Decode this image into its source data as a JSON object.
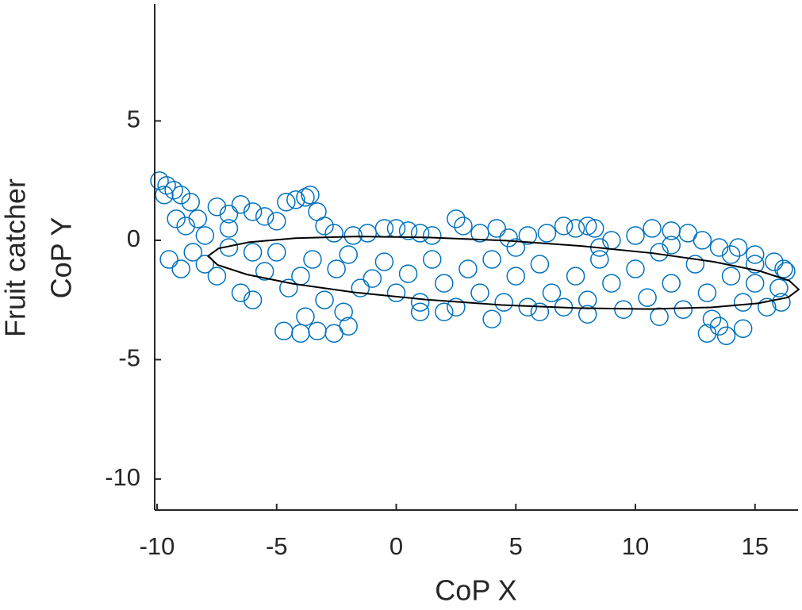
{
  "chart_data": {
    "type": "scatter",
    "xlabel": "CoP X",
    "ylabel": [
      "Fruit catcher",
      "CoP Y"
    ],
    "color": "#0072bd",
    "xlim": [
      -10.1,
      16.8
    ],
    "xticks": [
      -10,
      -5,
      0,
      5,
      10,
      15
    ],
    "ylim": [
      -11.3,
      9.9
    ],
    "yticks": [
      -10,
      -5,
      0,
      5
    ],
    "x": [
      -9.9,
      -9.6,
      -9.3,
      -9.7,
      -9,
      -8.6,
      -9.2,
      -8.8,
      -8.3,
      -7.5,
      -7,
      -6.5,
      -6,
      -5.5,
      -5,
      -4.6,
      -4.2,
      -3.8,
      -3.6,
      -3.3,
      -3,
      -2.6,
      -1.8,
      -1.2,
      -0.5,
      0,
      0.5,
      1,
      1.5,
      2.5,
      2.8,
      3.5,
      4.2,
      4.7,
      5.5,
      6.3,
      7,
      7.5,
      8,
      8.3,
      9,
      10,
      10.7,
      11.5,
      12.2,
      12.8,
      13.5,
      14.3,
      15,
      15.8,
      16.2,
      -9.5,
      -9,
      -8.5,
      -8,
      -7.5,
      -7,
      -6.5,
      -6,
      -5.5,
      -5,
      -4.5,
      -4,
      -3.5,
      -3,
      -2.5,
      -2,
      -1.5,
      -1,
      -0.5,
      0,
      0.5,
      1,
      1.5,
      2,
      2.5,
      3,
      3.5,
      4,
      4.5,
      5,
      5.5,
      6,
      6.5,
      7,
      7.5,
      8,
      8.5,
      9,
      9.5,
      10,
      10.5,
      11,
      11.5,
      12,
      12.5,
      13,
      13.5,
      14,
      14.5,
      15,
      15.5,
      16,
      16.3,
      16.1,
      -4.7,
      -4,
      -3.3,
      -2.6,
      -2,
      -2.2,
      -3.8,
      13,
      13.8,
      14.5,
      13.2,
      1,
      2,
      4,
      6,
      8,
      11,
      5,
      8.5,
      11.5,
      14,
      15,
      -6,
      -8,
      -7
    ],
    "y": [
      2.5,
      2.3,
      2.1,
      1.9,
      1.9,
      1.6,
      0.9,
      0.6,
      0.9,
      1.4,
      1.1,
      1.5,
      1.2,
      1,
      0.8,
      1.6,
      1.7,
      1.8,
      1.9,
      1.2,
      0.6,
      0.3,
      0.2,
      0.3,
      0.5,
      0.5,
      0.4,
      0.3,
      0.2,
      0.9,
      0.6,
      0.3,
      0.5,
      0.1,
      0.2,
      0.3,
      0.6,
      0.5,
      0.6,
      0.5,
      0,
      0.2,
      0.5,
      0.4,
      0.3,
      0,
      -0.3,
      -0.3,
      -0.6,
      -0.9,
      -1.2,
      -0.8,
      -1.2,
      -0.5,
      -1,
      -1.5,
      -0.3,
      -2.2,
      -2.5,
      -1.3,
      -0.5,
      -2,
      -1.5,
      -0.8,
      -2.5,
      -1.2,
      -0.6,
      -2,
      -1.6,
      -0.9,
      -2.2,
      -1.4,
      -2.6,
      -0.8,
      -1.8,
      -2.8,
      -1.2,
      -2.2,
      -0.8,
      -2.6,
      -1.5,
      -2.8,
      -1,
      -2.2,
      -2.8,
      -1.5,
      -2.5,
      -0.8,
      -1.8,
      -2.9,
      -1.2,
      -2.4,
      -0.5,
      -1.8,
      -2.9,
      -1,
      -2.2,
      -3.6,
      -1.5,
      -2.6,
      -1.8,
      -2.8,
      -2,
      -1.3,
      -2.6,
      -3.8,
      -3.9,
      -3.8,
      -3.9,
      -3.6,
      -3,
      -3.2,
      -3.9,
      -4,
      -3.7,
      -3.3,
      -3,
      -3,
      -3.3,
      -3,
      -3.1,
      -3.2,
      -0.3,
      -0.3,
      -0.2,
      -0.6,
      -1,
      -0.5,
      0.2,
      0.5
    ],
    "ellipse": {
      "color": "#000000",
      "x": [
        16.83,
        16.43,
        15.21,
        13.27,
        10.73,
        7.74,
        4.56,
        1.36,
        -1.63,
        -4.21,
        -6.17,
        -7.43,
        -7.87,
        -7.47,
        -6.25,
        -4.31,
        -1.77,
        1.22,
        4.4,
        7.6,
        10.59,
        13.17,
        15.13,
        16.39
      ],
      "y": [
        -2.06,
        -1.69,
        -1.29,
        -0.9,
        -0.54,
        -0.24,
        -0.01,
        0.12,
        0.16,
        0.09,
        -0.08,
        -0.34,
        -0.66,
        -1.03,
        -1.43,
        -1.82,
        -2.18,
        -2.48,
        -2.71,
        -2.84,
        -2.88,
        -2.81,
        -2.64,
        -2.39
      ]
    }
  }
}
